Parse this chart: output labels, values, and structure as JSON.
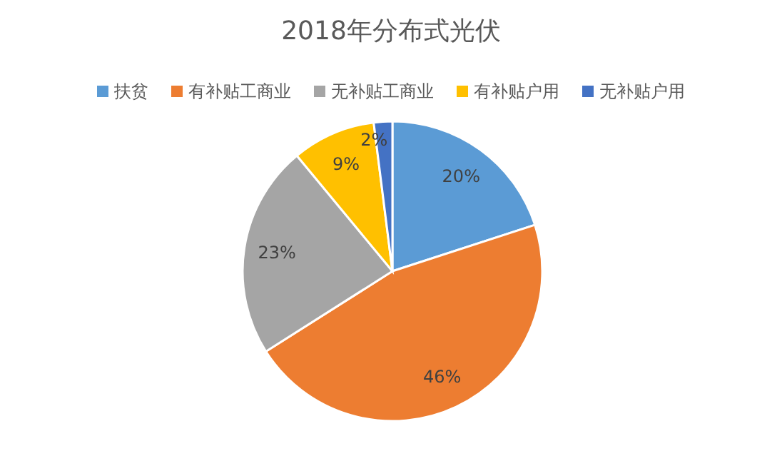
{
  "chart_data": {
    "type": "pie",
    "title": "2018年分布式光伏",
    "categories": [
      "扶贫",
      "有补贴工商业",
      "无补贴工商业",
      "有补贴户用",
      "无补贴户用"
    ],
    "values": [
      20,
      46,
      23,
      9,
      2
    ],
    "colors": [
      "#5b9bd5",
      "#ed7d31",
      "#a5a5a5",
      "#ffc000",
      "#4472c4"
    ],
    "value_labels": [
      "20%",
      "46%",
      "23%",
      "9%",
      "2%"
    ],
    "legend": "top"
  }
}
